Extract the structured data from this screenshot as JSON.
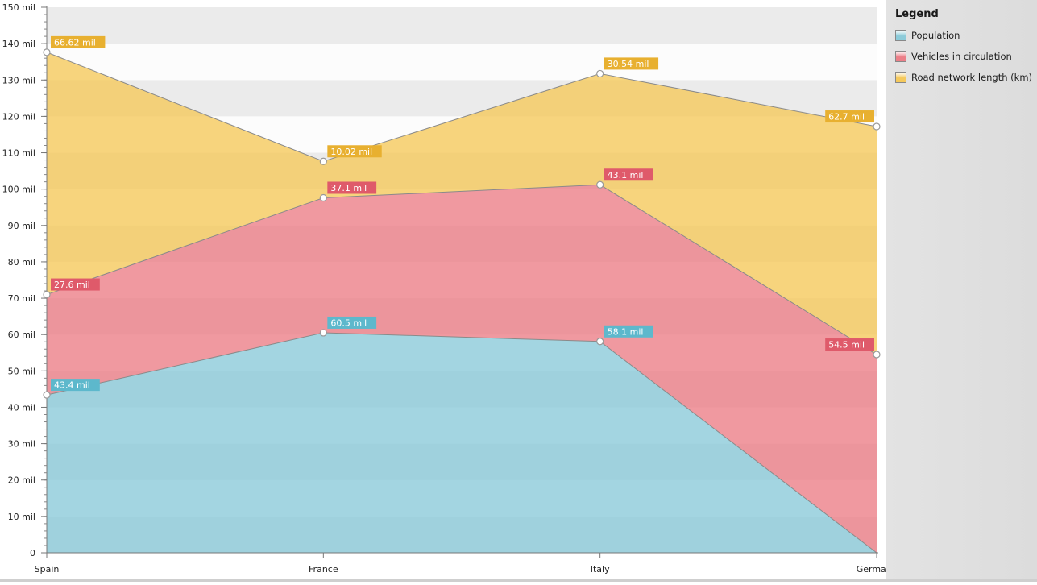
{
  "chart_data": {
    "type": "area",
    "stacked": true,
    "categories": [
      "Spain",
      "France",
      "Italy",
      "Germany"
    ],
    "ylim": [
      0,
      150000000
    ],
    "ytick_step": 10000000,
    "yticks": [
      "0",
      "10 mil",
      "20 mil",
      "30 mil",
      "40 mil",
      "50 mil",
      "60 mil",
      "70 mil",
      "80 mil",
      "90 mil",
      "100 mil",
      "110 mil",
      "120 mil",
      "130 mil",
      "140 mil",
      "150 mil"
    ],
    "grid": "alternating horizontal bands",
    "legend_position": "right",
    "series": [
      {
        "name": "Population",
        "color": "#8ccbd9",
        "label_color": "#5db8cc",
        "values": [
          43400000,
          60500000,
          58100000,
          0
        ],
        "labels": [
          "43.4 mil",
          "60.5 mil",
          "58.1 mil",
          ""
        ]
      },
      {
        "name": "Vehicles in circulation",
        "color": "#ec7f88",
        "label_color": "#df5a6a",
        "values": [
          27600000,
          37100000,
          43100000,
          54500000
        ],
        "labels": [
          "27.6 mil",
          "37.1 mil",
          "43.1 mil",
          "54.5 mil"
        ]
      },
      {
        "name": "Road network length (km)",
        "color": "#f5c95c",
        "label_color": "#e8b030",
        "values": [
          66620000,
          10020000,
          30540000,
          62700000
        ],
        "labels": [
          "66.62 mil",
          "10.02 mil",
          "30.54 mil",
          "62.7 mil"
        ]
      }
    ]
  },
  "legend": {
    "title": "Legend",
    "items": [
      {
        "label": "Population",
        "color": "#8ccbd9"
      },
      {
        "label": "Vehicles in circulation",
        "color": "#ec7f88"
      },
      {
        "label": "Road network length (km)",
        "color": "#f5c95c"
      }
    ]
  }
}
